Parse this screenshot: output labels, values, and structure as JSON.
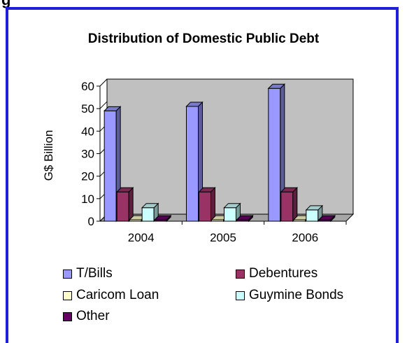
{
  "header_cut_text": "g",
  "chart_data": {
    "type": "bar",
    "title": "Distribution of Domestic Public Debt",
    "xlabel": "",
    "ylabel": "G$ Billion",
    "ylim": [
      0,
      60
    ],
    "yticks": [
      0,
      10,
      20,
      30,
      40,
      50,
      60
    ],
    "categories": [
      "2004",
      "2005",
      "2006"
    ],
    "grid": false,
    "legend_position": "bottom",
    "plot_background": "#c0c0c0",
    "series": [
      {
        "name": "T/Bills",
        "values": [
          49,
          51,
          59
        ],
        "color": "#9999ff"
      },
      {
        "name": "Debentures",
        "values": [
          13,
          13,
          13
        ],
        "color": "#993366"
      },
      {
        "name": "Caricom Loan",
        "values": [
          0.5,
          0.5,
          0.5
        ],
        "color": "#ffffcc"
      },
      {
        "name": "Guymine Bonds",
        "values": [
          6,
          6,
          5
        ],
        "color": "#ccffff"
      },
      {
        "name": "Other",
        "values": [
          0.3,
          0.3,
          0.3
        ],
        "color": "#660066"
      }
    ]
  }
}
